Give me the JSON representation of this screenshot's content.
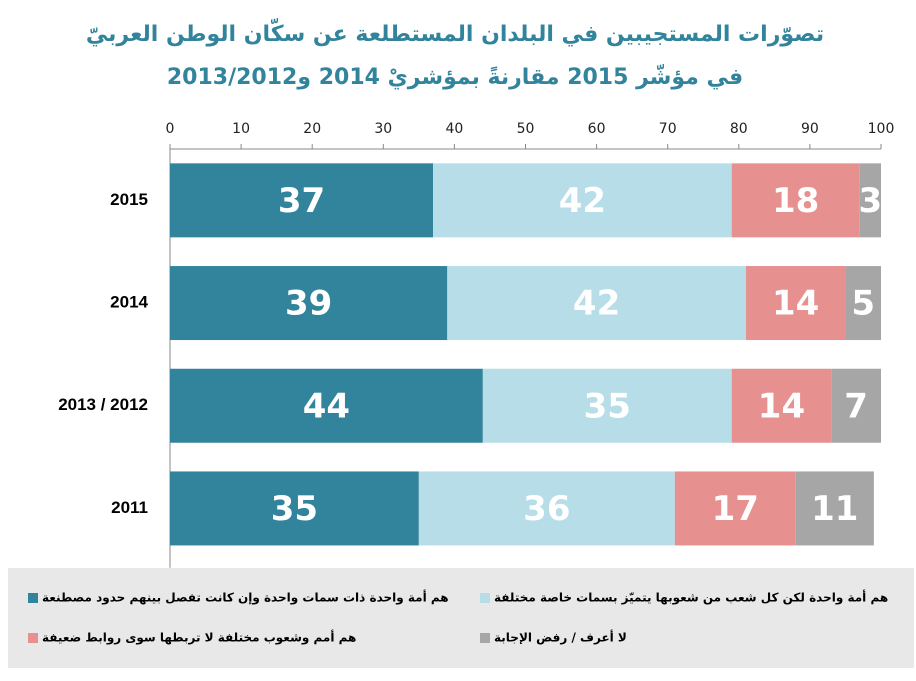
{
  "chart_data": {
    "type": "bar",
    "orientation": "horizontal",
    "stacked": true,
    "title": "تصوّرات المستجيبين في البلدان المستطلعة عن سكّان الوطن العربيّ",
    "subtitle": "في مؤشّر 2015 مقارنةً بمؤشريْ 2014 و2013/2012",
    "categories": [
      "2015",
      "2014",
      "2013 / 2012",
      "2011"
    ],
    "series": [
      {
        "name": "هم أمة واحدة ذات سمات واحدة وإن كانت تفصل بينهم حدود مصطنعة",
        "color": "#31849b",
        "values": [
          37,
          39,
          44,
          35
        ]
      },
      {
        "name": "هم أمة واحدة لكن كل شعب من شعوبها يتميّز بسمات خاصة مختلفة",
        "color": "#b7dee8",
        "values": [
          42,
          42,
          35,
          36
        ]
      },
      {
        "name": "هم أمم وشعوب مختلفة لا تربطها سوى روابط ضعيفة",
        "color": "#e6908f",
        "values": [
          18,
          14,
          14,
          17
        ]
      },
      {
        "name": "لا أعرف / رفض الإجابة",
        "color": "#a6a6a6",
        "values": [
          3,
          5,
          7,
          11
        ]
      }
    ],
    "xlim": [
      0,
      100
    ],
    "xticks": [
      0,
      10,
      20,
      30,
      40,
      50,
      60,
      70,
      80,
      90,
      100
    ],
    "grid": false
  }
}
